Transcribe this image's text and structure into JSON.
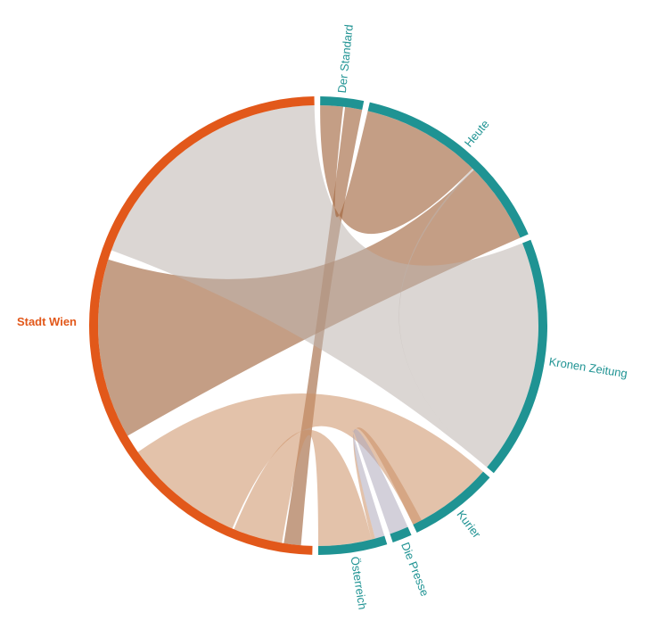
{
  "chart_data": {
    "type": "chord",
    "groups": [
      {
        "id": "stadt_wien",
        "label": "Stadt Wien",
        "color": "#e2581a",
        "bold": true
      },
      {
        "id": "der_standard",
        "label": "Der Standard",
        "color": "#1f9393"
      },
      {
        "id": "heute",
        "label": "Heute",
        "color": "#1f9393"
      },
      {
        "id": "kronen_zeitung",
        "label": "Kronen Zeitung",
        "color": "#1f9393"
      },
      {
        "id": "kurier",
        "label": "Kurier",
        "color": "#1f9393"
      },
      {
        "id": "die_presse",
        "label": "Die Presse",
        "color": "#1f9393"
      },
      {
        "id": "oesterreich",
        "label": "Österreich",
        "color": "#1f9393"
      }
    ],
    "flows": [
      {
        "from": "stadt_wien",
        "to": "der_standard",
        "color": "#a0623a"
      },
      {
        "from": "stadt_wien",
        "to": "heute",
        "color": "#a0623a"
      },
      {
        "from": "stadt_wien",
        "to": "kronen_zeitung",
        "color": "#bdb4ae"
      },
      {
        "from": "stadt_wien",
        "to": "kurier",
        "color": "#cc9065"
      },
      {
        "from": "stadt_wien",
        "to": "oesterreich",
        "color": "#cc9065"
      },
      {
        "from": "heute",
        "to": "der_standard",
        "color": "#a0623a"
      },
      {
        "from": "heute",
        "to": "kronen_zeitung",
        "color": "#bdb4ae"
      },
      {
        "from": "kurier",
        "to": "oesterreich",
        "color": "#cc9065"
      },
      {
        "from": "die_presse",
        "to": "oesterreich",
        "color": "#aeaabb"
      }
    ]
  }
}
